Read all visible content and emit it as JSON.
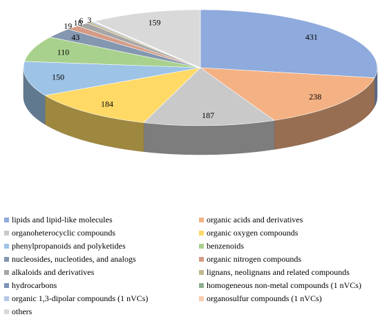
{
  "chart_data": {
    "type": "pie",
    "title": "",
    "categories": [
      "lipids and lipid-like molecules",
      "organic acids and derivatives",
      "organoheterocyclic compounds",
      "organic oxygen compounds",
      "phenylpropanoids and polyketides",
      "benzenoids",
      "nucleosides, nucleotides, and analogs",
      "organic nitrogen compounds",
      "alkaloids and derivatives",
      "lignans, neolignans and related compounds",
      "hydrocarbons",
      "homogeneous non-metal compounds (1 nVCs)",
      "organic 1,3-dipolar compounds (1 nVCs)",
      "organosulfur compounds (1 nVCs)",
      "others"
    ],
    "values": [
      431,
      238,
      187,
      184,
      150,
      110,
      43,
      19,
      18,
      6,
      3,
      1,
      1,
      1,
      159
    ],
    "labels": [
      "431",
      "238",
      "187",
      "184",
      "150",
      "110",
      "43",
      "19",
      "18",
      "6",
      "3",
      "",
      "",
      "",
      "159"
    ],
    "colors": [
      "#8faadc",
      "#f4b183",
      "#c9c9c9",
      "#ffd966",
      "#9dc3e6",
      "#a9d18e",
      "#8497b0",
      "#d59b86",
      "#a6a6a6",
      "#c4b890",
      "#7f93b8",
      "#8fae8f",
      "#b4c7e7",
      "#f8cbad",
      "#d9d9d9"
    ],
    "legend_position": "bottom",
    "style": "3d-pie"
  },
  "legend": {
    "items": [
      "lipids and lipid-like molecules",
      "organic acids and derivatives",
      "organoheterocyclic compounds",
      "organic oxygen compounds",
      "phenylpropanoids and polyketides",
      "benzenoids",
      "nucleosides, nucleotides, and analogs",
      "organic nitrogen compounds",
      "alkaloids and derivatives",
      "lignans, neolignans and related compounds",
      "hydrocarbons",
      "homogeneous non-metal compounds (1 nVCs)",
      "organic 1,3-dipolar compounds (1 nVCs)",
      "organosulfur compounds (1 nVCs)",
      "others"
    ]
  }
}
